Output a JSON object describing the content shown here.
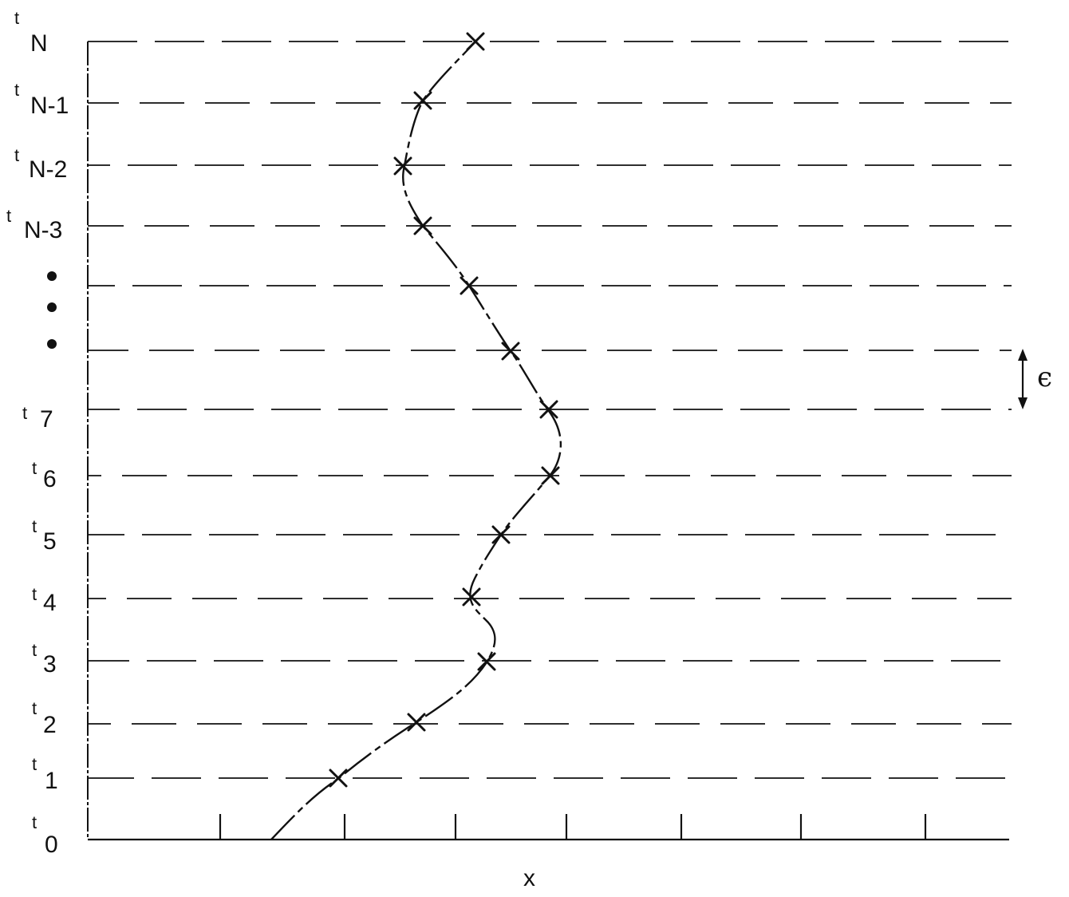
{
  "diagram": {
    "time_labels": [
      {
        "key": "tN",
        "t": "t",
        "sub": "N"
      },
      {
        "key": "tN1",
        "t": "t",
        "sub": "N-1"
      },
      {
        "key": "tN2",
        "t": "t",
        "sub": "N-2"
      },
      {
        "key": "tN3",
        "t": "t",
        "sub": "N-3"
      },
      {
        "key": "t7",
        "t": "t",
        "sub": "7"
      },
      {
        "key": "t6",
        "t": "t",
        "sub": "6"
      },
      {
        "key": "t5",
        "t": "t",
        "sub": "5"
      },
      {
        "key": "t4",
        "t": "t",
        "sub": "4"
      },
      {
        "key": "t3",
        "t": "t",
        "sub": "3"
      },
      {
        "key": "t2",
        "t": "t",
        "sub": "2"
      },
      {
        "key": "t1",
        "t": "t",
        "sub": "1"
      },
      {
        "key": "t0",
        "t": "t",
        "sub": "0"
      }
    ],
    "x_axis_label": "x",
    "spacing_label": "ϵ",
    "ellipsis": "•",
    "line_color": "#111111"
  }
}
